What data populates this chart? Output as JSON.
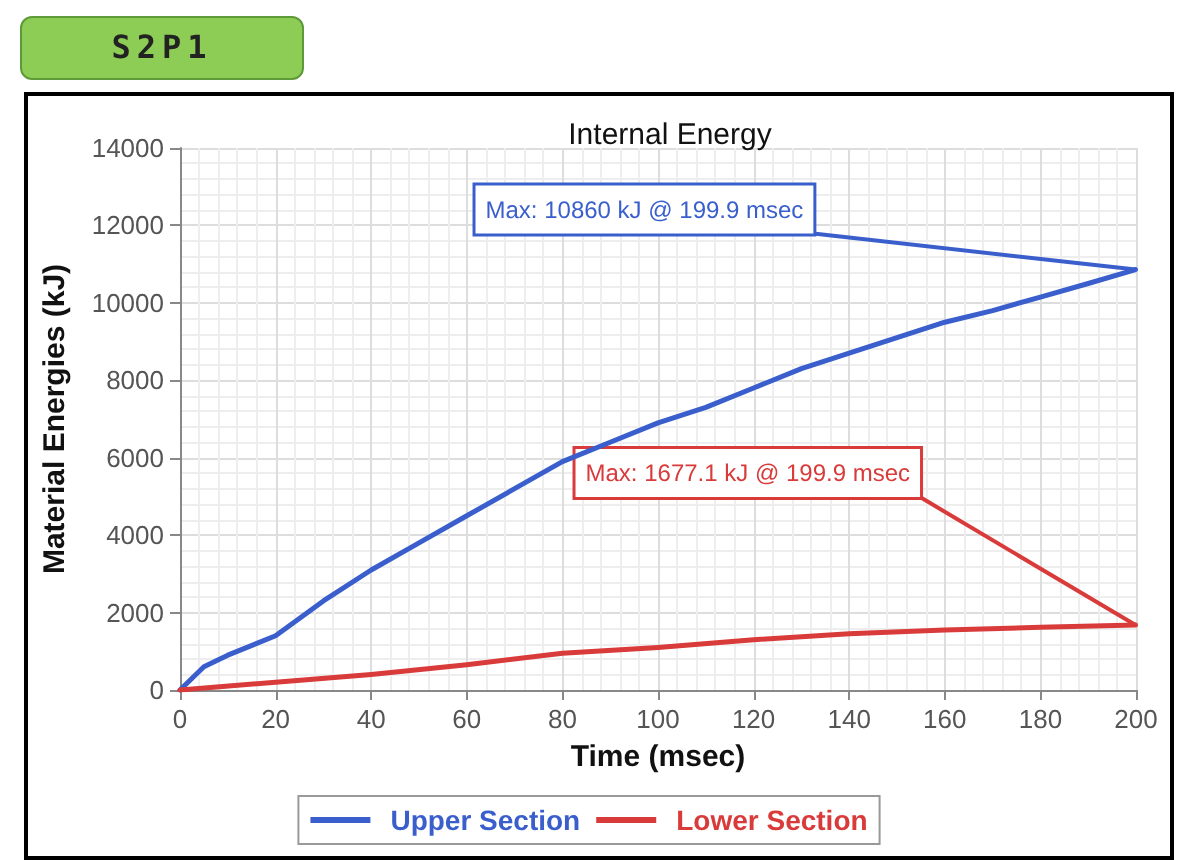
{
  "chart_data": {
    "type": "line",
    "title": "Internal Energy",
    "xlabel": "Time (msec)",
    "ylabel": "Material Energies (kJ)",
    "series": [
      {
        "name": "Upper Section",
        "color": "#3a5fcd",
        "x": [
          0,
          5,
          10,
          20,
          30,
          40,
          50,
          60,
          70,
          80,
          90,
          100,
          110,
          120,
          130,
          140,
          150,
          160,
          170,
          180,
          190,
          199.9
        ],
        "values": [
          0,
          600,
          900,
          1400,
          2300,
          3100,
          3800,
          4500,
          5200,
          5900,
          6400,
          6900,
          7300,
          7800,
          8300,
          8700,
          9100,
          9500,
          9800,
          10150,
          10500,
          10860
        ]
      },
      {
        "name": "Lower Section",
        "color": "#d93a3a",
        "x": [
          0,
          20,
          40,
          60,
          80,
          100,
          120,
          140,
          160,
          180,
          199.9
        ],
        "values": [
          0,
          200,
          400,
          650,
          950,
          1100,
          1300,
          1450,
          1550,
          1620,
          1677.1
        ]
      }
    ],
    "xlim": [
      0,
      200
    ],
    "xticks": [
      0,
      20,
      40,
      60,
      80,
      100,
      120,
      140,
      160,
      180,
      200
    ],
    "ylim": [
      0,
      14000
    ],
    "yticks": [
      0,
      2000,
      4000,
      6000,
      8000,
      10000,
      12000,
      14000
    ],
    "grid": true,
    "legend": "bottom",
    "marker": "none",
    "line_style": "solid",
    "annotations": [
      "S2P1",
      {
        "text": "Max: 10860 kJ @ 199.9 msec",
        "x": 199.9,
        "y": 10860
      },
      {
        "text": "Max: 1677.1 kJ @ 199.9 msec",
        "x": 199.9,
        "y": 1677.1
      }
    ]
  }
}
